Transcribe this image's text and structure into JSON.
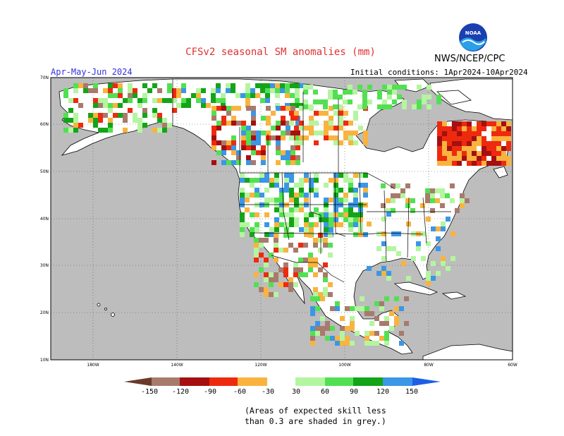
{
  "header": {
    "title": "CFSv2 seasonal SM anomalies (mm)",
    "agency": "NWS/NCEP/CPC",
    "logo_text": "NOAA",
    "period": "Apr-May-Jun 2024",
    "initial_conditions": "Initial conditions: 1Apr2024-10Apr2024"
  },
  "axes": {
    "lat_labels": [
      "70N",
      "60N",
      "50N",
      "40N",
      "30N",
      "20N",
      "10N"
    ],
    "lon_labels": [
      "180W",
      "140W",
      "120W",
      "100W",
      "80W",
      "60W"
    ]
  },
  "legend": {
    "tick_labels": [
      "-150",
      "-120",
      "-90",
      "-60",
      "-30",
      "30",
      "60",
      "90",
      "120",
      "150"
    ],
    "colors": {
      "below_-150": "#6b3a2a",
      "-150_-120": "#a87a6c",
      "-120_-90": "#a50f0f",
      "-90_-60": "#ee2a0e",
      "-60_-30": "#f9b33e",
      "neutral": "#ffffff",
      "30_60": "#b4f5a0",
      "60_90": "#52e052",
      "90_120": "#13a418",
      "120_150": "#3a96e6",
      "above_150": "#1e5ee6"
    }
  },
  "map_colors": {
    "low_skill_grey": "#bdbdbd",
    "land": "#ffffff",
    "boundaries": "#000000"
  },
  "footnote": {
    "line1": "(Areas of expected skill less",
    "line2": "than 0.3 are shaded in grey.)"
  }
}
